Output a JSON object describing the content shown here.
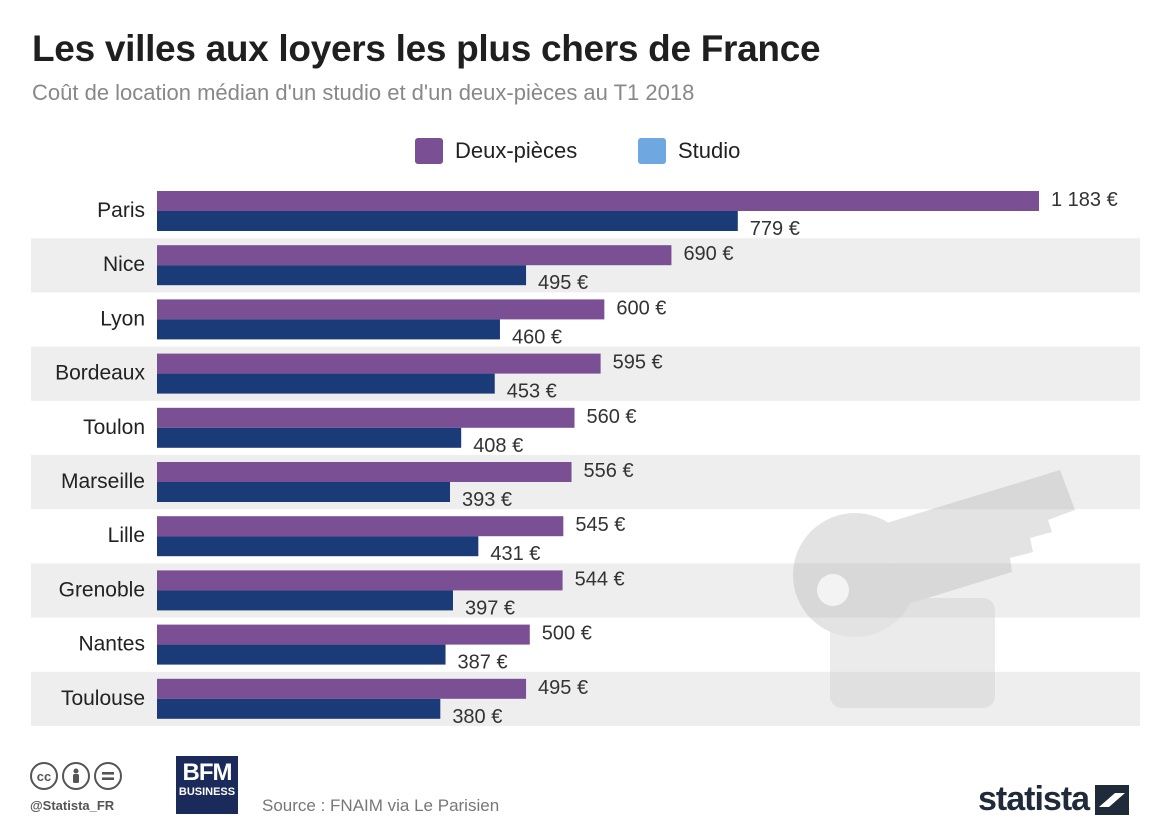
{
  "title": "Les villes aux loyers les plus chers de France",
  "subtitle": "Coût de location médian d'un studio et d'un deux-pièces au T1 2018",
  "legend": {
    "deux_pieces": "Deux-pièces",
    "studio": "Studio"
  },
  "colors": {
    "deux_pieces": "#7b4f94",
    "studio": "#1b3a78",
    "studio_legend": "#6fa8e0",
    "stripe": "#eeeeee"
  },
  "chart_data": {
    "type": "bar",
    "orientation": "horizontal",
    "title": "Les villes aux loyers les plus chers de France",
    "categories": [
      "Paris",
      "Nice",
      "Lyon",
      "Bordeaux",
      "Toulon",
      "Marseille",
      "Lille",
      "Grenoble",
      "Nantes",
      "Toulouse"
    ],
    "series": [
      {
        "name": "Deux-pièces",
        "values": [
          1183,
          690,
          600,
          595,
          560,
          556,
          545,
          544,
          500,
          495
        ],
        "labels": [
          "1 183 €",
          "690 €",
          "600 €",
          "595 €",
          "560 €",
          "556 €",
          "545 €",
          "544 €",
          "500 €",
          "495 €"
        ]
      },
      {
        "name": "Studio",
        "values": [
          779,
          495,
          460,
          453,
          408,
          393,
          431,
          397,
          387,
          380
        ],
        "labels": [
          "779 €",
          "495 €",
          "460 €",
          "453 €",
          "408 €",
          "393 €",
          "431 €",
          "397 €",
          "387 €",
          "380 €"
        ]
      }
    ],
    "xlim": [
      0,
      1183
    ],
    "legend_position": "top-center",
    "grid": false
  },
  "footer": {
    "handle": "@Statista_FR",
    "bfm_line1": "BFM",
    "bfm_line2": "BUSINESS",
    "source": "Source : FNAIM via Le Parisien",
    "brand": "statista"
  }
}
